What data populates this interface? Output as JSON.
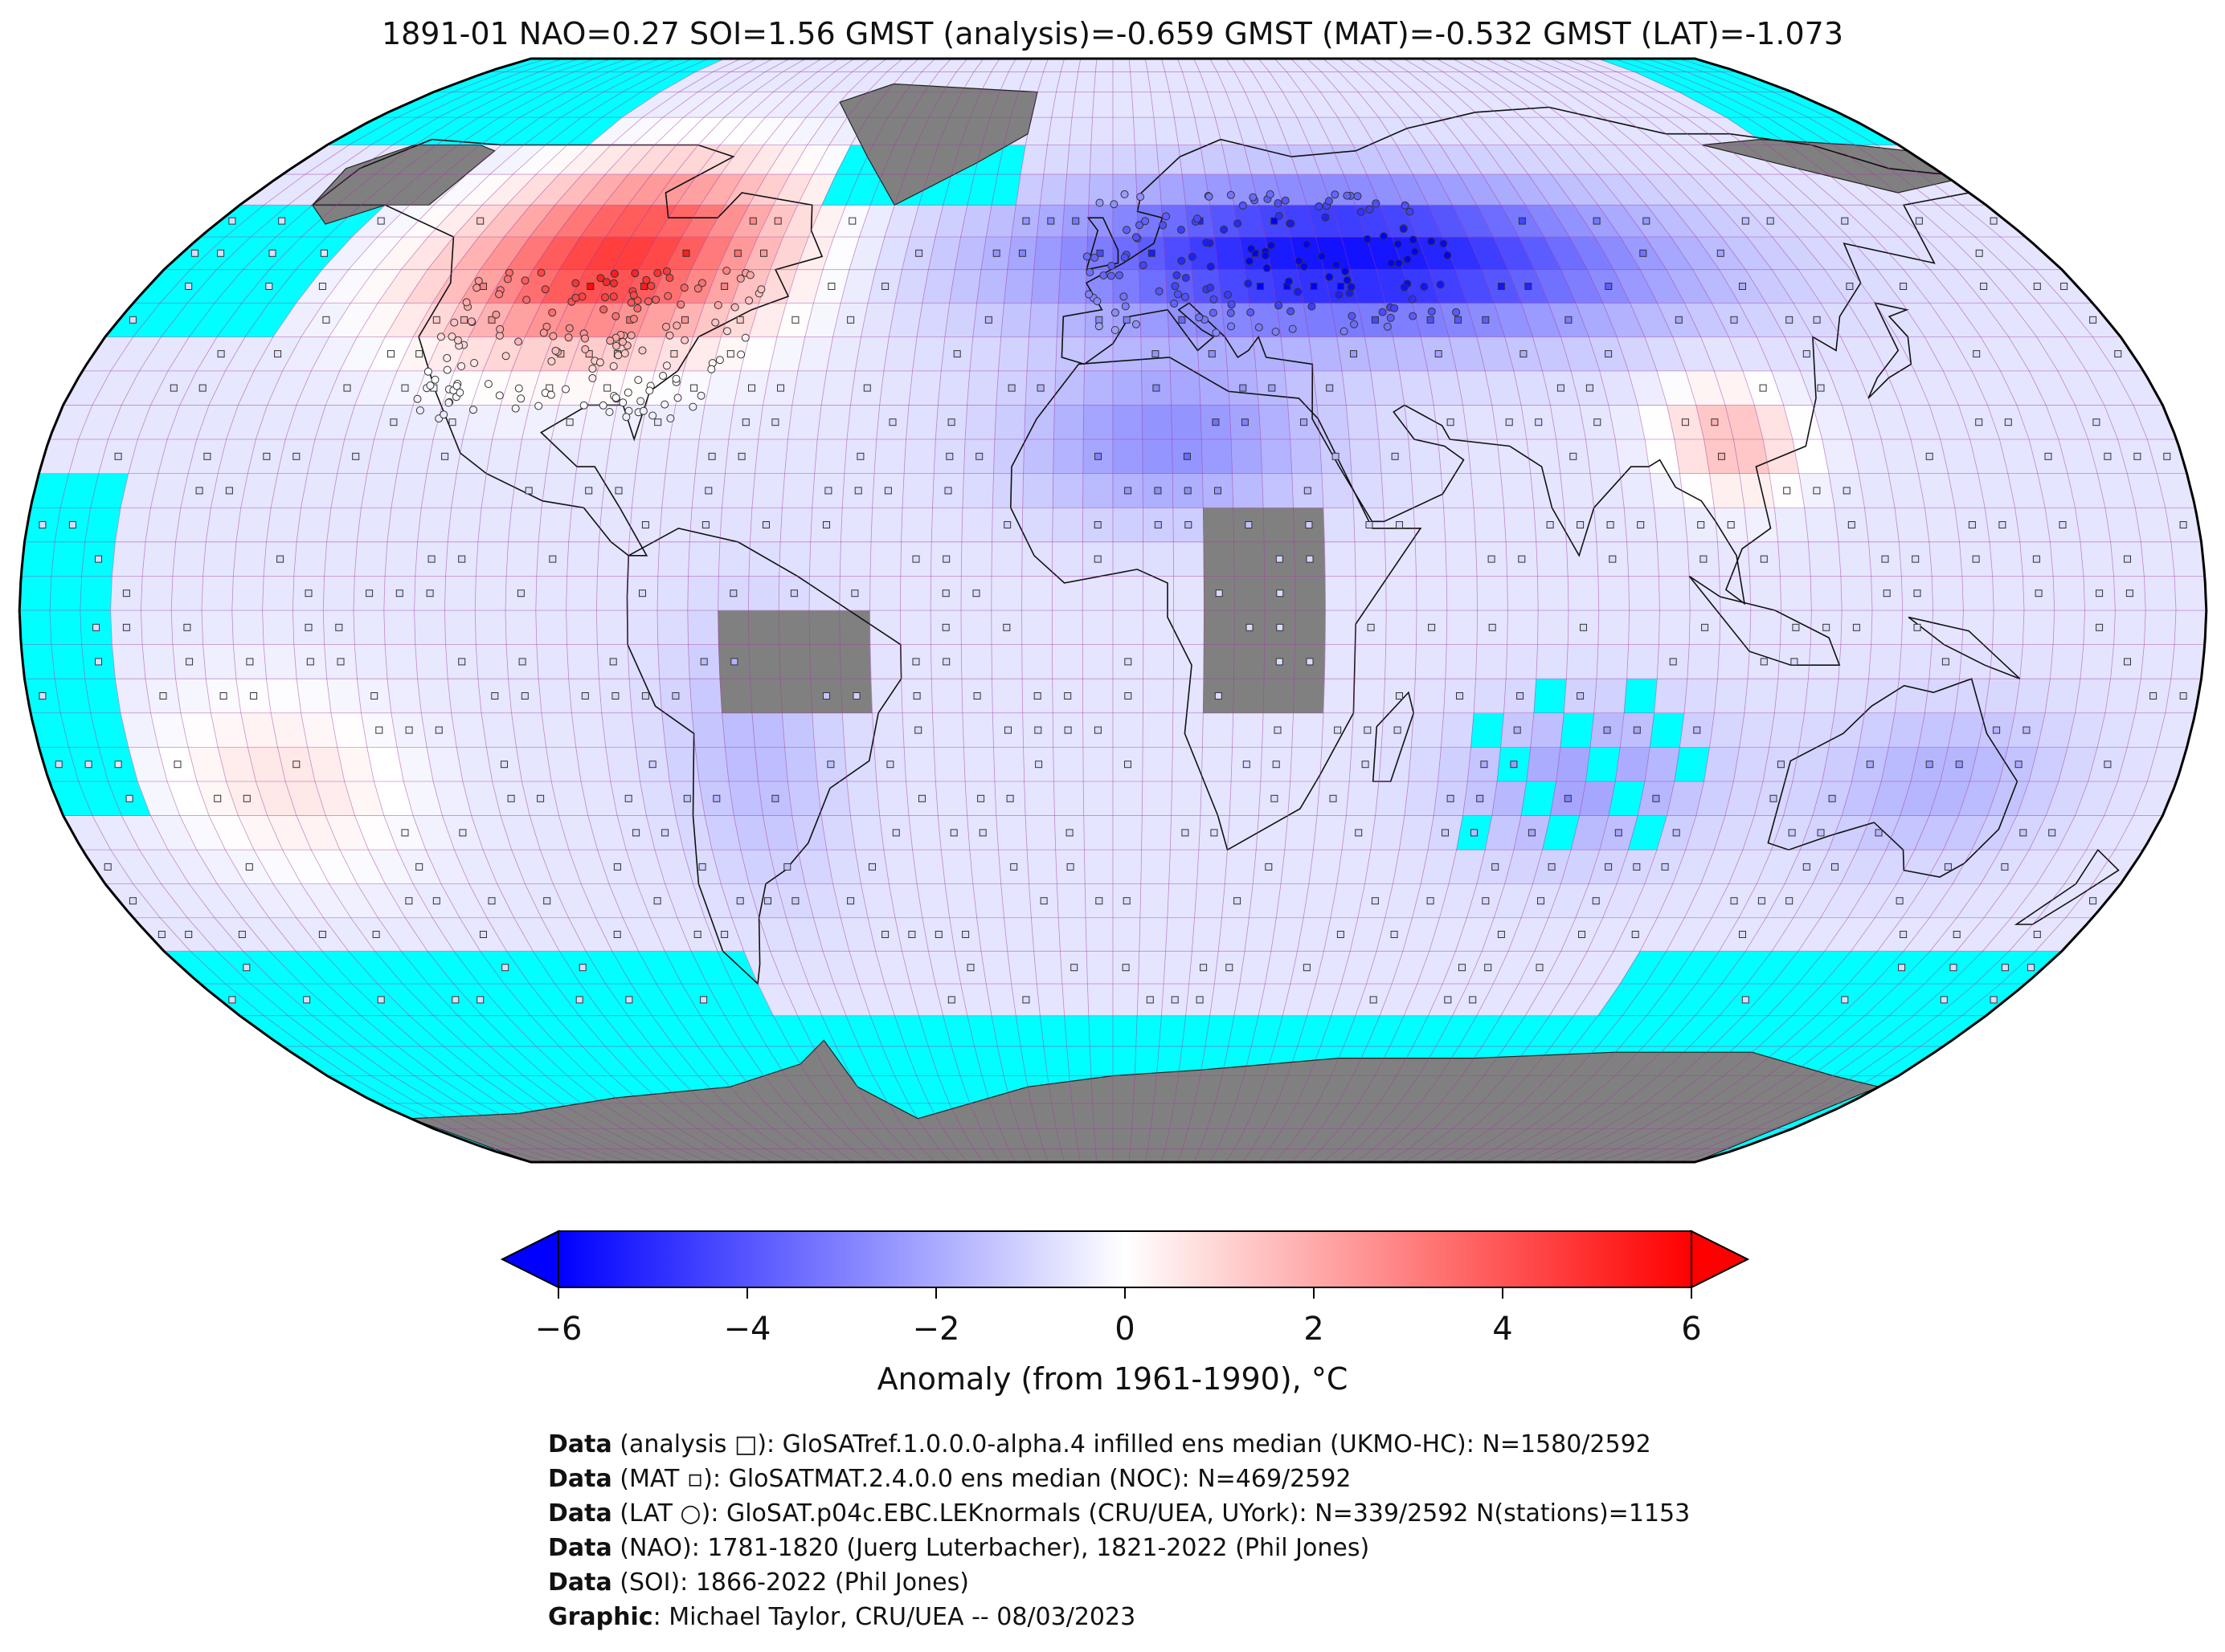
{
  "title": "1891-01 NAO=0.27 SOI=1.56 GMST (analysis)=-0.659 GMST (MAT)=-0.532 GMST (LAT)=-1.073",
  "colorbar": {
    "label": "Anomaly (from 1961-1990), °C",
    "ticks": [
      "−6",
      "−4",
      "−2",
      "0",
      "2",
      "4",
      "6"
    ],
    "range": [
      -6,
      6
    ],
    "colors": {
      "low": "#0000ff",
      "mid": "#ffffff",
      "high": "#ff0000"
    }
  },
  "map": {
    "projection": "Robinson",
    "ocean_missing_color": "#00ffff",
    "land_missing_color": "#808080",
    "grid_color": "#a03aa0"
  },
  "credits": [
    {
      "bold": "Data",
      "text": " (analysis □): GloSATref.1.0.0.0-alpha.4 infilled ens median (UKMO-HC): N=1580/2592"
    },
    {
      "bold": "Data",
      "text": " (MAT ▫): GloSATMAT.2.4.0.0 ens median (NOC): N=469/2592"
    },
    {
      "bold": "Data",
      "text": " (LAT ○): GloSAT.p04c.EBC.LEKnormals (CRU/UEA, UYork): N=339/2592 N(stations)=1153"
    },
    {
      "bold": "Data",
      "text": " (NAO): 1781-1820 (Juerg Luterbacher), 1821-2022 (Phil Jones)"
    },
    {
      "bold": "Data",
      "text": " (SOI): 1866-2022 (Phil Jones)"
    },
    {
      "bold": "Graphic",
      "text": ": Michael Taylor, CRU/UEA -- 08/03/2023"
    }
  ]
}
